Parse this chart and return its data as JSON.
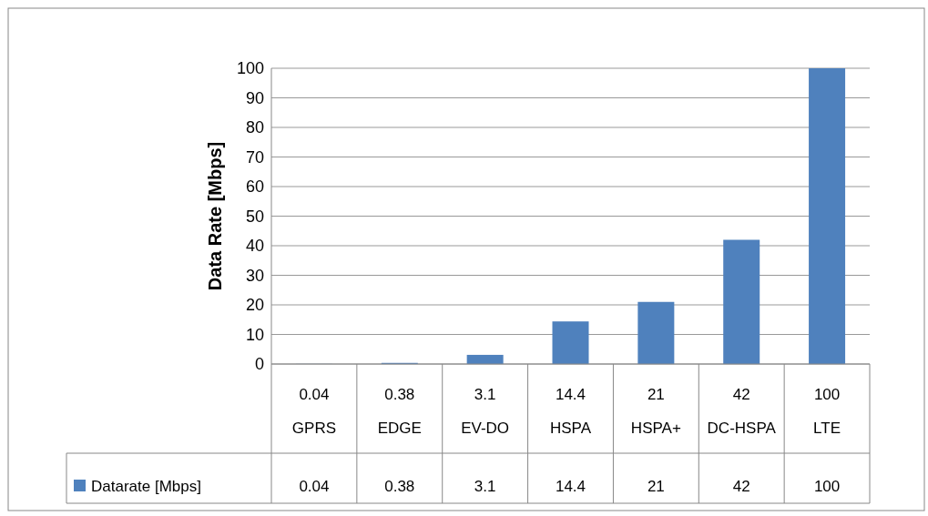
{
  "chart_data": {
    "type": "bar",
    "ylabel": "Data Rate [Mbps]",
    "categories": [
      "0.04\nGPRS",
      "0.38\nEDGE",
      "3.1\nEV-DO",
      "14.4\nHSPA",
      "21\nHSPA+",
      "42\nDC-HSPA",
      "100\nLTE"
    ],
    "series": [
      {
        "name": "Datarate [Mbps]",
        "color": "#4f81bd",
        "values": [
          0.04,
          0.38,
          3.1,
          14.4,
          21,
          42,
          100
        ]
      }
    ],
    "ylim": [
      0,
      100
    ],
    "yticks": [
      0,
      10,
      20,
      30,
      40,
      50,
      60,
      70,
      80,
      90,
      100
    ],
    "grid": "y",
    "data_labels": true,
    "legend": "bottom"
  }
}
